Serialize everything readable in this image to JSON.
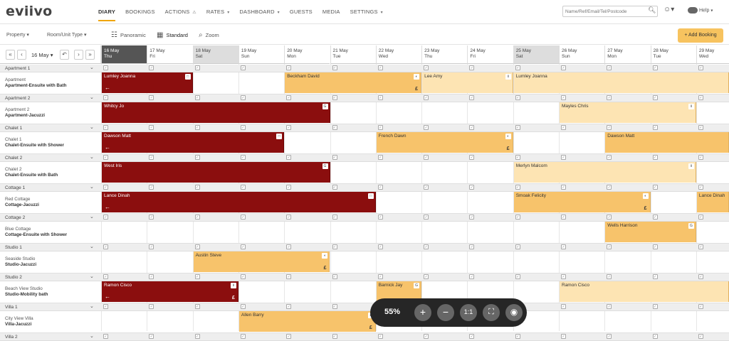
{
  "app": {
    "logo": "eviivo"
  },
  "nav": {
    "items": [
      {
        "label": "DIARY",
        "caret": false,
        "active": true
      },
      {
        "label": "BOOKINGS",
        "caret": false
      },
      {
        "label": "ACTIONS",
        "caret": false,
        "warn": true
      },
      {
        "label": "RATES",
        "caret": true
      },
      {
        "label": "DASHBOARD",
        "caret": true
      },
      {
        "label": "GUESTS",
        "caret": false
      },
      {
        "label": "MEDIA",
        "caret": false
      },
      {
        "label": "SETTINGS",
        "caret": true
      }
    ],
    "search_placeholder": "Name/Ref/Email/Tel/Postcode",
    "help_label": "Help"
  },
  "toolbar": {
    "property_label": "Property",
    "room_type_label": "Room/Unit Type",
    "panoramic_label": "Panoramic",
    "standard_label": "Standard",
    "zoom_label": "Zoom",
    "add_booking_label": "+ Add Booking"
  },
  "date_nav": {
    "current": "16 May"
  },
  "days": [
    {
      "date": "16 May",
      "dow": "Thu",
      "today": true
    },
    {
      "date": "17 May",
      "dow": "Fri"
    },
    {
      "date": "18 May",
      "dow": "Sat",
      "weekend": true
    },
    {
      "date": "19 May",
      "dow": "Sun"
    },
    {
      "date": "20 May",
      "dow": "Mon"
    },
    {
      "date": "21 May",
      "dow": "Tue"
    },
    {
      "date": "22 May",
      "dow": "Wed"
    },
    {
      "date": "23 May",
      "dow": "Thu"
    },
    {
      "date": "24 May",
      "dow": "Fri"
    },
    {
      "date": "25 May",
      "dow": "Sat",
      "weekend": true
    },
    {
      "date": "26 May",
      "dow": "Sun"
    },
    {
      "date": "27 May",
      "dow": "Mon"
    },
    {
      "date": "28 May",
      "dow": "Tue"
    },
    {
      "date": "29 May",
      "dow": "Wed"
    }
  ],
  "groups": [
    {
      "name": "Apartment 1",
      "room": "Apartment",
      "type": "Apartment-Ensuite with Bath",
      "bookings": [
        {
          "guest": "Lumley Joanna",
          "start": 0,
          "span": 2,
          "style": "dark",
          "arrow": true,
          "badge": "□"
        },
        {
          "guest": "Beckham David",
          "start": 4,
          "span": 3,
          "style": "amber",
          "pound": true,
          "badge": "◐"
        },
        {
          "guest": "Lee Amy",
          "start": 7,
          "span": 2,
          "style": "light",
          "badge": "ii"
        },
        {
          "guest": "Lumley Joanna",
          "start": 9,
          "span": 5,
          "style": "light"
        }
      ]
    },
    {
      "name": "Apartment 2",
      "room": "Apartment 2",
      "type": "Apartment-Jacuzzi",
      "bookings": [
        {
          "guest": "Whitcy Jo",
          "start": 0,
          "span": 5,
          "style": "dark",
          "badge": "G"
        },
        {
          "guest": "Mayles Chris",
          "start": 10,
          "span": 3,
          "style": "light",
          "badge": "ii"
        }
      ]
    },
    {
      "name": "Chalet 1",
      "room": "Chalet 1",
      "type": "Chalet-Ensuite with Shower",
      "bookings": [
        {
          "guest": "Dawson Matt",
          "start": 0,
          "span": 4,
          "style": "dark",
          "arrow": true,
          "badge": "□"
        },
        {
          "guest": "French Dawn",
          "start": 6,
          "span": 3,
          "style": "amber",
          "pound": true,
          "badge": "◐"
        },
        {
          "guest": "Dawson Matt",
          "start": 11,
          "span": 3,
          "style": "amber"
        }
      ]
    },
    {
      "name": "Chalet 2",
      "room": "Chalet 2",
      "type": "Chalet-Ensuite with Bath",
      "bookings": [
        {
          "guest": "West Iris",
          "start": 0,
          "span": 5,
          "style": "dark",
          "badge": "G"
        },
        {
          "guest": "Merlyn Malcom",
          "start": 9,
          "span": 4,
          "style": "light",
          "badge": "ii"
        }
      ]
    },
    {
      "name": "Cottage 1",
      "room": "Red Cottage",
      "type": "Cottage-Jacuzzi",
      "bookings": [
        {
          "guest": "Lance Dinah",
          "start": 0,
          "span": 6,
          "style": "dark",
          "arrow": true,
          "badge": "□"
        },
        {
          "guest": "Smoak Felicity",
          "start": 9,
          "span": 3,
          "style": "amber",
          "pound": true,
          "badge": "◐"
        },
        {
          "guest": "Lance Dinah",
          "start": 13,
          "span": 1,
          "style": "amber"
        }
      ]
    },
    {
      "name": "Cottage 2",
      "room": "Blue Cottage",
      "type": "Cottage-Ensuite with Shower",
      "bookings": [
        {
          "guest": "Wells Harrison",
          "start": 11,
          "span": 2,
          "style": "amber",
          "badge": "G"
        }
      ]
    },
    {
      "name": "Studio 1",
      "room": "Seaside Studio",
      "type": "Studio-Jacuzzi",
      "bookings": [
        {
          "guest": "Austin Steve",
          "start": 2,
          "span": 3,
          "style": "amber",
          "pound": true,
          "badge": "◐"
        }
      ]
    },
    {
      "name": "Studio 2",
      "room": "Beach View Studio",
      "type": "Studio-Mobility bath",
      "bookings": [
        {
          "guest": "Ramon Cisco",
          "start": 0,
          "span": 3,
          "style": "dark",
          "arrow": true,
          "pound": true,
          "badge": "ii"
        },
        {
          "guest": "Barnick Jay",
          "start": 6,
          "span": 1,
          "style": "amber",
          "badge": "G"
        },
        {
          "guest": "Ramon Cisco",
          "start": 10,
          "span": 4,
          "style": "light"
        }
      ]
    },
    {
      "name": "Villa 1",
      "room": "City View Villa",
      "type": "Villa-Jacuzzi",
      "bookings": [
        {
          "guest": "Allen Barry",
          "start": 3,
          "span": 3,
          "style": "amber",
          "pound": true,
          "badge": "◐"
        }
      ]
    },
    {
      "name": "Villa 2",
      "room": "",
      "type": "",
      "bookings": []
    }
  ],
  "zoom_widget": {
    "percent": "55%",
    "plus": "+",
    "minus": "−",
    "one_to_one": "1:1",
    "fit": "⛶",
    "camera": "◉"
  },
  "colors": {
    "dark": "#8b0e0e",
    "amber": "#f7c36b",
    "light": "#fde4b3",
    "accent": "#f0a500"
  }
}
